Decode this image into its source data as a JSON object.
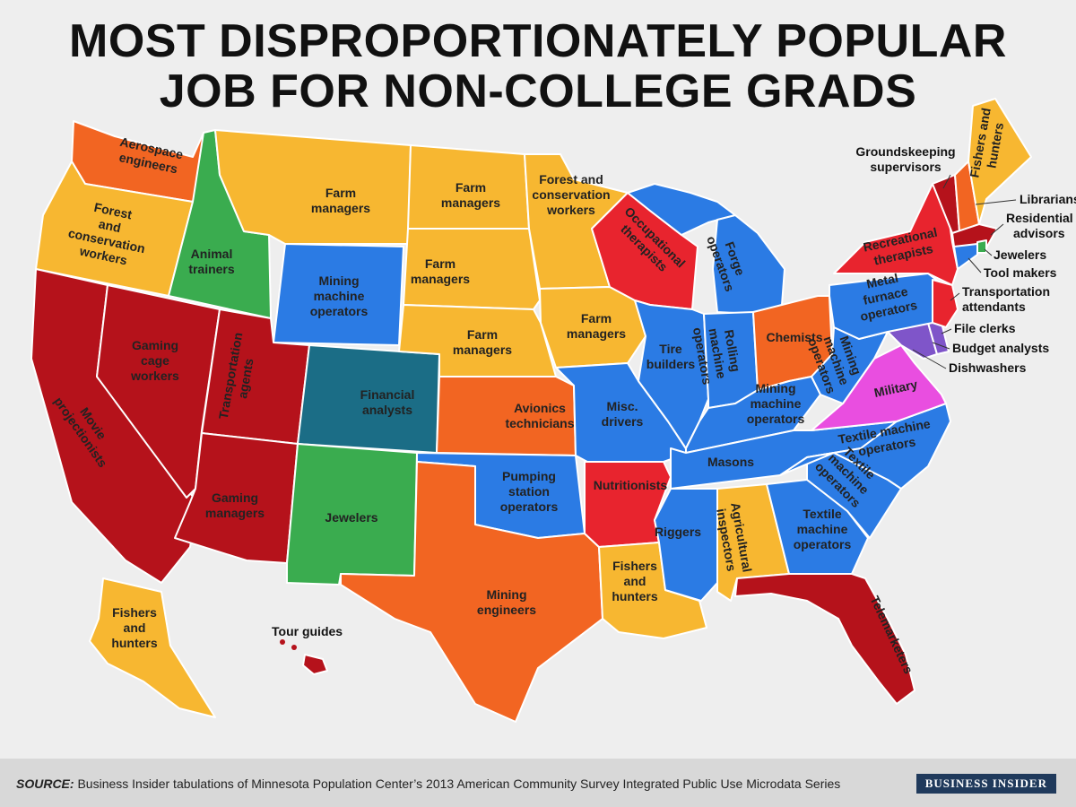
{
  "title_line1": "MOST DISPROPORTIONATELY POPULAR",
  "title_line2": "JOB FOR NON-COLLEGE GRADS",
  "source_label": "SOURCE:",
  "source_text": "Business Insider tabulations of Minnesota Population Center’s 2013 American Community Survey Integrated Public Use Microdata Series",
  "brand": "BUSINESS INSIDER",
  "colors": {
    "orange_yellow": "#f7b731",
    "orange": "#f26522",
    "red": "#e8242e",
    "dark_red": "#b5121b",
    "blue": "#2b7be4",
    "green": "#3aac4f",
    "teal": "#1b6d86",
    "purple": "#7f55c9",
    "pink": "#e94ee0"
  },
  "states": {
    "WA": {
      "job": [
        "Aerospace",
        "engineers"
      ]
    },
    "OR": {
      "job": [
        "Forest",
        "and",
        "conservation",
        "workers"
      ]
    },
    "CA": {
      "job": [
        "Movie",
        "projectionists"
      ]
    },
    "NV": {
      "job": [
        "Gaming",
        "cage",
        "workers"
      ]
    },
    "ID": {
      "job": [
        "Animal",
        "trainers"
      ]
    },
    "MT": {
      "job": [
        "Farm",
        "managers"
      ]
    },
    "WY": {
      "job": [
        "Mining",
        "machine",
        "operators"
      ]
    },
    "UT": {
      "job": [
        "Transportation",
        "agents"
      ]
    },
    "AZ": {
      "job": [
        "Gaming",
        "managers"
      ]
    },
    "CO": {
      "job": [
        "Financial",
        "analysts"
      ]
    },
    "NM": {
      "job": [
        "Jewelers"
      ]
    },
    "ND": {
      "job": [
        "Farm",
        "managers"
      ]
    },
    "SD": {
      "job": [
        "Farm",
        "managers"
      ]
    },
    "NE": {
      "job": [
        "Farm",
        "managers"
      ]
    },
    "KS": {
      "job": [
        "Avionics",
        "technicians"
      ]
    },
    "OK": {
      "job": [
        "Pumping",
        "station",
        "operators"
      ]
    },
    "TX": {
      "job": [
        "Mining",
        "engineers"
      ]
    },
    "MN": {
      "job": [
        "Forest and",
        "conservation",
        "workers"
      ]
    },
    "IA": {
      "job": [
        "Farm",
        "managers"
      ]
    },
    "MO": {
      "job": [
        "Misc.",
        "drivers"
      ]
    },
    "AR": {
      "job": [
        "Nutritionists"
      ]
    },
    "LA": {
      "job": [
        "Fishers",
        "and",
        "hunters"
      ]
    },
    "WI": {
      "job": [
        "Occupational",
        "therapists"
      ]
    },
    "IL": {
      "job": [
        "Tire",
        "builders"
      ]
    },
    "MI": {
      "job": [
        "Forge",
        "operators"
      ]
    },
    "IN": {
      "job": [
        "Rolling",
        "machine",
        "operators"
      ]
    },
    "OH": {
      "job": [
        "Chemists"
      ]
    },
    "KY": {
      "job": [
        "Mining",
        "machine",
        "operators"
      ]
    },
    "TN": {
      "job": [
        "Masons"
      ]
    },
    "MS": {
      "job": [
        "Riggers"
      ]
    },
    "AL": {
      "job": [
        "Agricultural",
        "inspectors"
      ]
    },
    "GA": {
      "job": [
        "Textile",
        "machine",
        "operators"
      ]
    },
    "FL": {
      "job": [
        "Telemarketers"
      ]
    },
    "SC": {
      "job": [
        "Textile",
        "machine",
        "operators"
      ]
    },
    "NC": {
      "job": [
        "Textile machine",
        "operators"
      ]
    },
    "VA": {
      "job": [
        "Military"
      ]
    },
    "WV": {
      "job": [
        "Mining",
        "machine",
        "operators"
      ]
    },
    "PA": {
      "job": [
        "Metal",
        "furnace",
        "operators"
      ]
    },
    "NY": {
      "job": [
        "Recreational",
        "therapists"
      ]
    },
    "AK": {
      "job": [
        "Fishers",
        "and",
        "hunters"
      ]
    },
    "HI": {
      "job": [
        "Tour guides"
      ]
    },
    "ME": {
      "job": [
        "Fishers and",
        "hunters"
      ]
    }
  },
  "callouts": {
    "VT": [
      "Groundskeeping",
      "supervisors"
    ],
    "NH": [
      "Librarians"
    ],
    "MA": [
      "Residential",
      "advisors"
    ],
    "RI": [
      "Jewelers"
    ],
    "CT": [
      "Tool makers"
    ],
    "NJ": [
      "Transportation",
      "attendants"
    ],
    "DE": [
      "File clerks"
    ],
    "MD": [
      "Budget analysts"
    ],
    "DC": [
      "Dishwashers"
    ]
  }
}
